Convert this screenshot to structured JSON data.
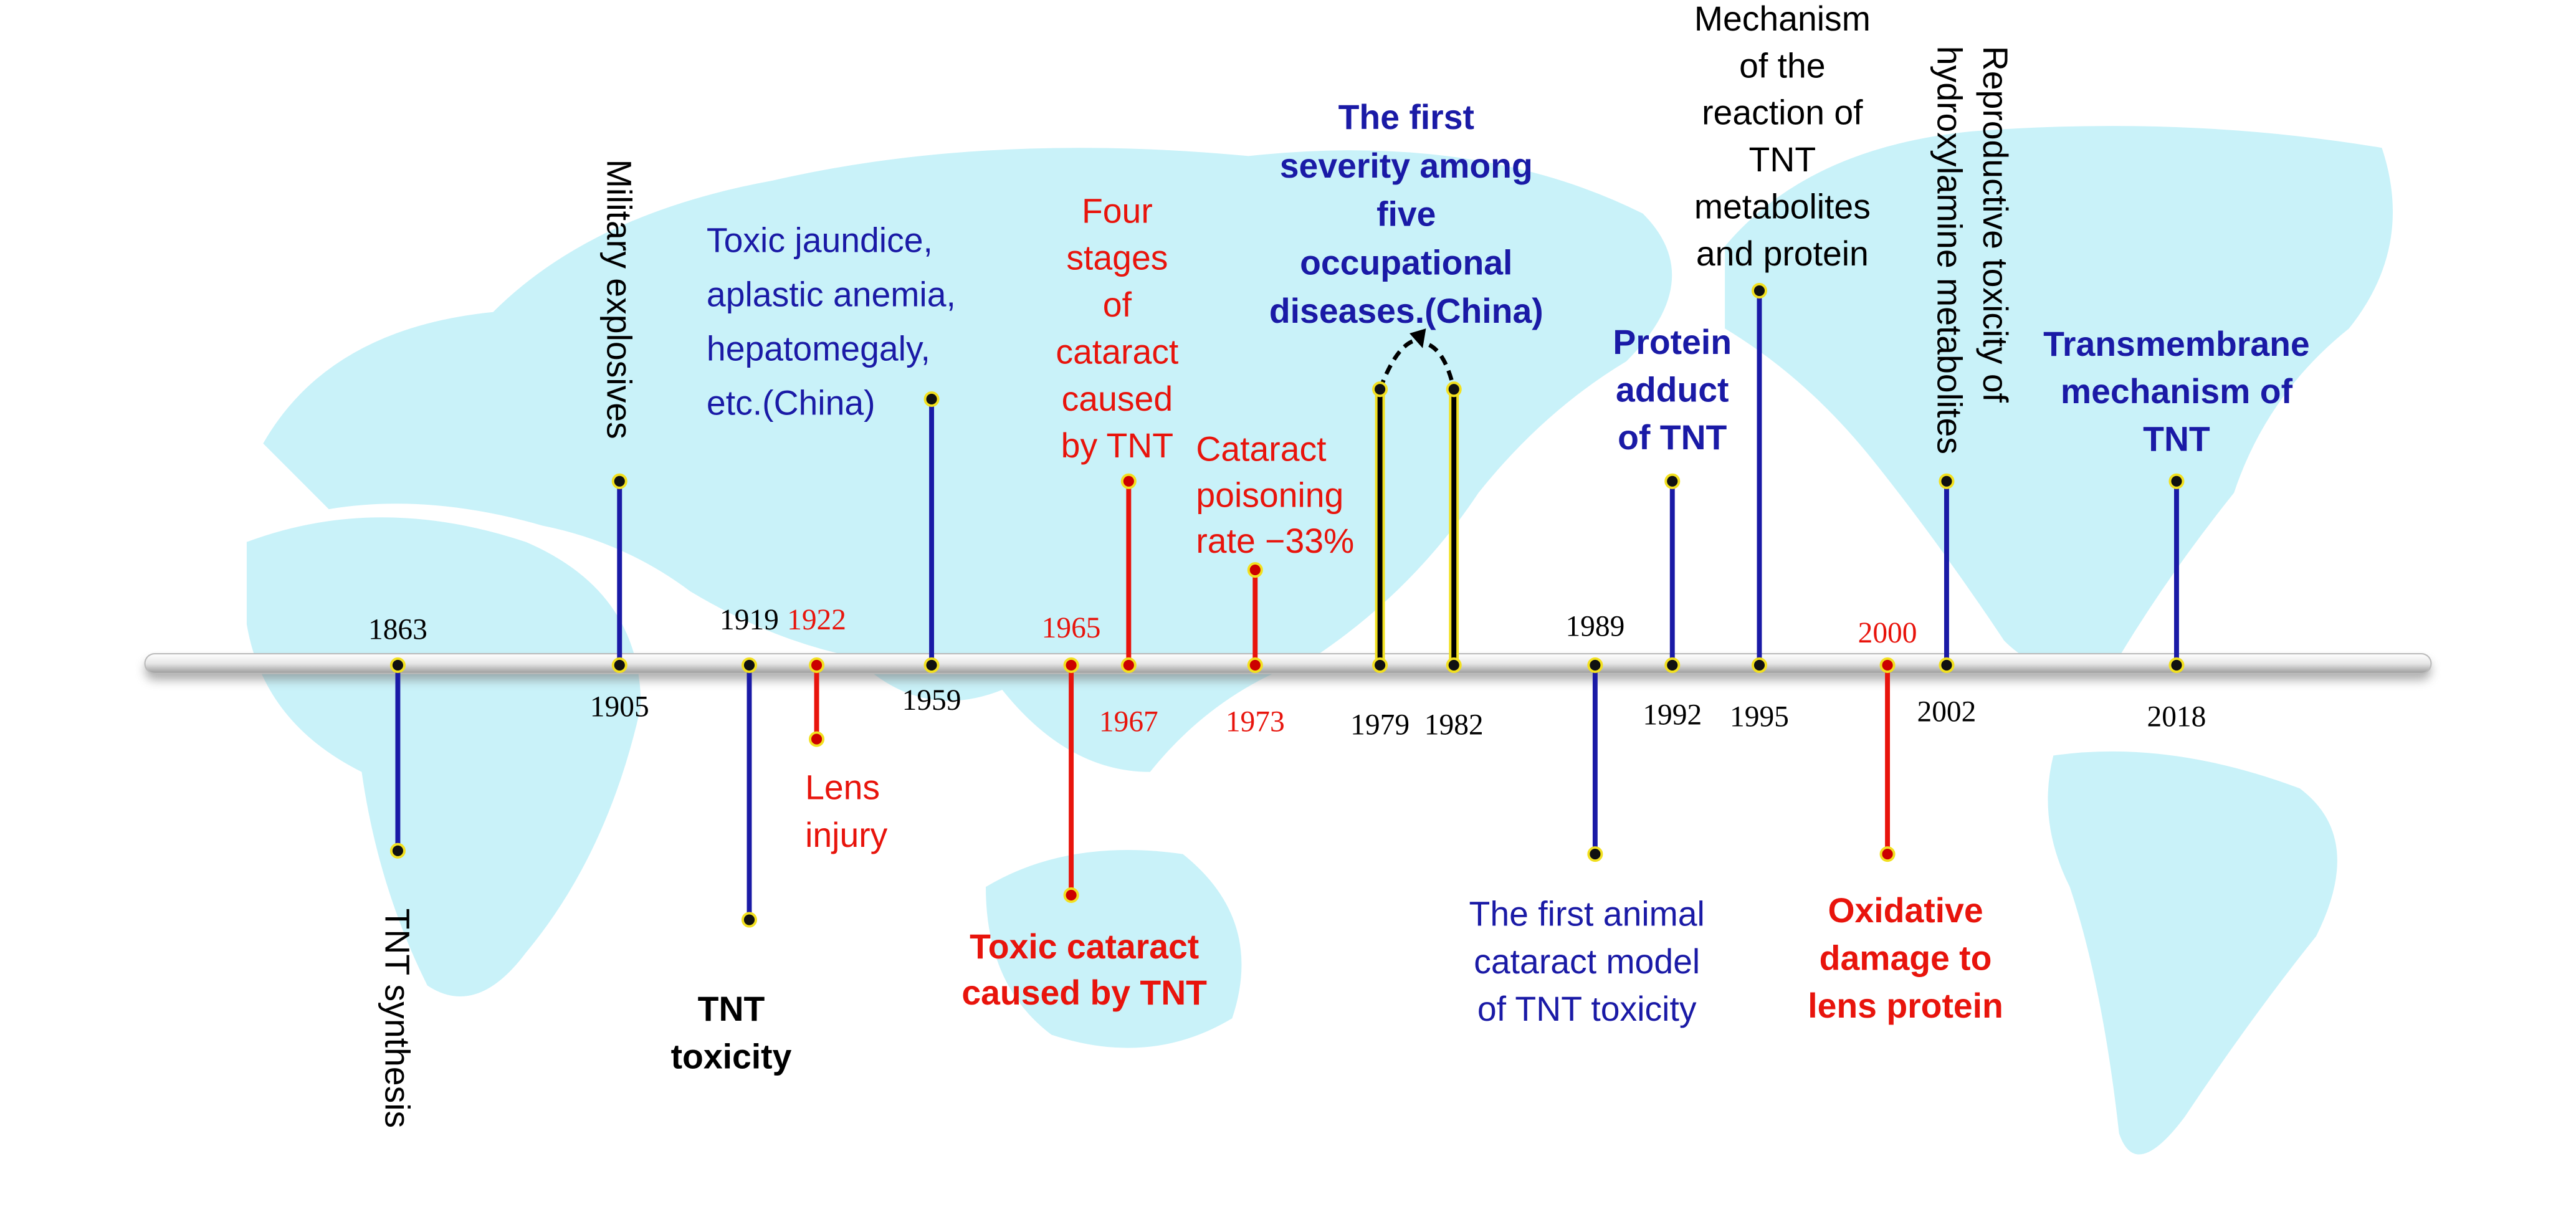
{
  "events": [
    {
      "year": "1863",
      "lines": [
        "TNT synthesis"
      ]
    },
    {
      "year": "1905",
      "lines": [
        "Military  explosives"
      ]
    },
    {
      "year": "1919",
      "lines": [
        "TNT",
        "toxicity"
      ]
    },
    {
      "year": "1922",
      "lines": [
        "Lens",
        "injury"
      ]
    },
    {
      "year": "1959",
      "lines": [
        "Toxic jaundice,",
        "aplastic anemia,",
        "hepatomegaly,",
        "etc.(China)"
      ]
    },
    {
      "year": "1965",
      "lines": [
        "Toxic cataract",
        "caused by TNT"
      ]
    },
    {
      "year": "1967",
      "lines": [
        "Four",
        "stages",
        "of",
        "cataract",
        "caused",
        "by TNT"
      ]
    },
    {
      "year": "1973",
      "lines": [
        "Cataract",
        "poisoning",
        "rate  −33%"
      ]
    },
    {
      "year": "1979",
      "lines": [
        "The first",
        "severity among",
        "five",
        "occupational",
        "diseases.(China)"
      ]
    },
    {
      "year": "1982"
    },
    {
      "year": "1989",
      "lines": [
        "The first  animal",
        "cataract  model",
        "of  TNT  toxicity"
      ]
    },
    {
      "year": "1992",
      "lines": [
        "Protein",
        "adduct",
        "of TNT"
      ]
    },
    {
      "year": "1995",
      "lines": [
        "Mechanism",
        "of the",
        "reaction of",
        "TNT",
        "metabolites",
        "and protein"
      ]
    },
    {
      "year": "2000",
      "lines": [
        "Oxidative",
        "damage to",
        "lens protein"
      ]
    },
    {
      "year": "2002",
      "lines": [
        "Reproductive toxicity of",
        "hydroxylamine metabolites"
      ]
    },
    {
      "year": "2018",
      "lines": [
        "Transmembrane",
        "mechanism of",
        "TNT"
      ]
    }
  ]
}
